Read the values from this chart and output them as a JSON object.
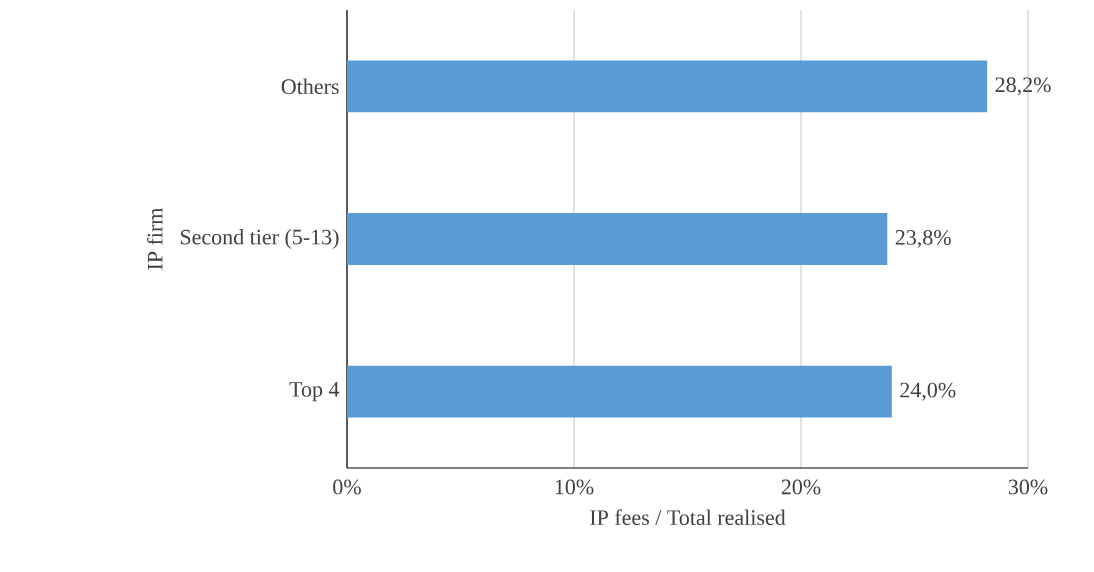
{
  "chart_data": {
    "type": "bar",
    "orientation": "horizontal",
    "xlabel": "IP fees / Total realised",
    "ylabel": "IP firm",
    "categories": [
      "Others",
      "Second tier (5-13)",
      "Top 4"
    ],
    "values": [
      28.2,
      23.8,
      24.0
    ],
    "value_labels": [
      "28,2%",
      "23,8%",
      "24,0%"
    ],
    "color": "#5b9bd5",
    "xlim": [
      0,
      30
    ],
    "xticks": [
      {
        "value": 0,
        "label": "0%"
      },
      {
        "value": 10,
        "label": "10%"
      },
      {
        "value": 20,
        "label": "20%"
      },
      {
        "value": 30,
        "label": "30%"
      }
    ],
    "grid": "x"
  }
}
